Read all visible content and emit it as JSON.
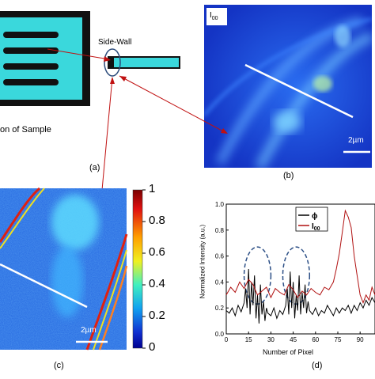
{
  "panel_a": {
    "side_wall_label": "Side-Wall",
    "caption": "on of Sample",
    "label": "(a)"
  },
  "panel_b": {
    "corner_label_main": "I",
    "corner_label_sub": "00",
    "scale_bar": "2µm",
    "label": "(b)"
  },
  "panel_c": {
    "scale_bar": "2µm",
    "label": "(c)",
    "colorbar_ticks": [
      "1",
      "0.8",
      "0.6",
      "0.4",
      "0.2",
      "0"
    ]
  },
  "panel_d": {
    "label": "(d)",
    "chart_data": {
      "type": "line",
      "title": "",
      "xlabel": "Number of Pixel",
      "ylabel": "Normalized Intensity (a.u.)",
      "xlim": [
        0,
        100
      ],
      "ylim": [
        0,
        1.0
      ],
      "x_ticks": [
        "0",
        "15",
        "30",
        "45",
        "60",
        "75",
        "90"
      ],
      "y_ticks": [
        "0.0",
        "0.2",
        "0.4",
        "0.6",
        "0.8",
        "1.0"
      ],
      "legend": {
        "placement": "top-center"
      },
      "series": [
        {
          "name": "ϕ",
          "color": "#000000",
          "x": [
            0,
            2,
            4,
            6,
            8,
            10,
            12,
            13,
            14,
            15,
            16,
            17,
            18,
            19,
            20,
            21,
            22,
            23,
            24,
            25,
            26,
            27,
            28,
            30,
            32,
            34,
            36,
            38,
            40,
            41,
            42,
            43,
            44,
            45,
            46,
            47,
            48,
            49,
            50,
            51,
            52,
            53,
            54,
            55,
            56,
            58,
            60,
            62,
            64,
            66,
            68,
            70,
            72,
            74,
            76,
            78,
            80,
            82,
            84,
            86,
            88,
            90,
            92,
            94,
            96,
            98,
            100
          ],
          "values": [
            0.18,
            0.16,
            0.2,
            0.14,
            0.22,
            0.17,
            0.24,
            0.35,
            0.2,
            0.5,
            0.15,
            0.4,
            0.22,
            0.45,
            0.12,
            0.3,
            0.08,
            0.38,
            0.15,
            0.25,
            0.1,
            0.2,
            0.16,
            0.14,
            0.2,
            0.12,
            0.18,
            0.15,
            0.22,
            0.35,
            0.15,
            0.48,
            0.2,
            0.4,
            0.12,
            0.3,
            0.18,
            0.45,
            0.15,
            0.32,
            0.2,
            0.38,
            0.16,
            0.25,
            0.18,
            0.15,
            0.2,
            0.14,
            0.18,
            0.16,
            0.22,
            0.18,
            0.14,
            0.2,
            0.16,
            0.2,
            0.18,
            0.22,
            0.16,
            0.22,
            0.18,
            0.24,
            0.2,
            0.26,
            0.22,
            0.28,
            0.24
          ]
        },
        {
          "name": "I",
          "name_sub": "00",
          "color": "#b01010",
          "x": [
            0,
            3,
            6,
            9,
            12,
            15,
            18,
            21,
            24,
            27,
            30,
            33,
            36,
            39,
            42,
            45,
            48,
            51,
            54,
            57,
            60,
            63,
            66,
            69,
            72,
            74,
            76,
            78,
            80,
            82,
            84,
            86,
            88,
            90,
            92,
            94,
            96,
            98,
            100
          ],
          "values": [
            0.3,
            0.36,
            0.32,
            0.4,
            0.35,
            0.42,
            0.38,
            0.3,
            0.33,
            0.36,
            0.28,
            0.35,
            0.32,
            0.3,
            0.38,
            0.34,
            0.28,
            0.33,
            0.3,
            0.35,
            0.32,
            0.3,
            0.36,
            0.34,
            0.4,
            0.5,
            0.62,
            0.78,
            0.95,
            0.9,
            0.82,
            0.6,
            0.45,
            0.3,
            0.24,
            0.3,
            0.26,
            0.36,
            0.3
          ]
        }
      ]
    }
  },
  "colors": {
    "sample_fill": "#3ad8dc",
    "sample_frame": "#111111",
    "arrow": "#c01010",
    "ellipse": "#2a4a7a",
    "ellipse_dash": "#2c4f86",
    "microscope_bg": "#1a3fd0",
    "scale_bar": "#ffffff"
  }
}
